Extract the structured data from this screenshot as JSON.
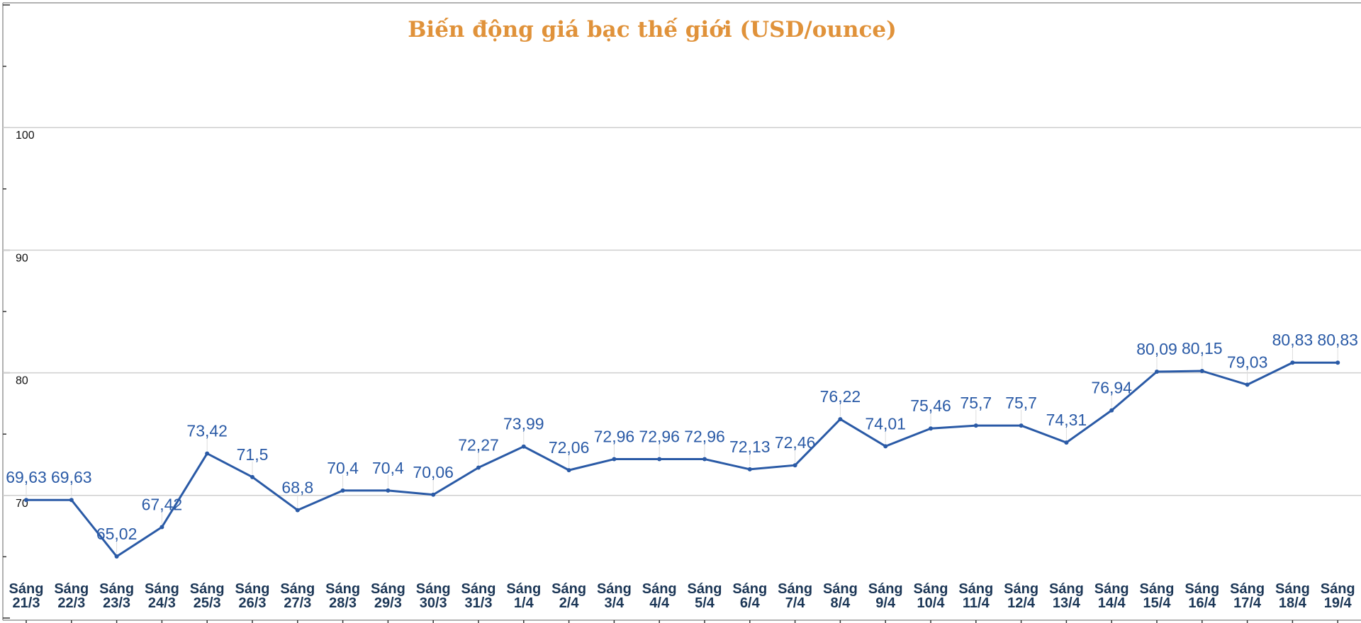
{
  "chart_data": {
    "type": "line",
    "title": "Biến động giá bạc thế giới (USD/ounce)",
    "xlabel": "",
    "ylabel": "",
    "ylim": [
      60,
      110
    ],
    "yticks": [
      "70",
      "80",
      "90",
      "100"
    ],
    "grid": true,
    "line_color": "#2a5aa6",
    "title_color": "#e0923a",
    "categories": [
      [
        "Sáng",
        "21/3"
      ],
      [
        "Sáng",
        "22/3"
      ],
      [
        "Sáng",
        "23/3"
      ],
      [
        "Sáng",
        "24/3"
      ],
      [
        "Sáng",
        "25/3"
      ],
      [
        "Sáng",
        "26/3"
      ],
      [
        "Sáng",
        "27/3"
      ],
      [
        "Sáng",
        "28/3"
      ],
      [
        "Sáng",
        "29/3"
      ],
      [
        "Sáng",
        "30/3"
      ],
      [
        "Sáng",
        "31/3"
      ],
      [
        "Sáng",
        "1/4"
      ],
      [
        "Sáng",
        "2/4"
      ],
      [
        "Sáng",
        "3/4"
      ],
      [
        "Sáng",
        "4/4"
      ],
      [
        "Sáng",
        "5/4"
      ],
      [
        "Sáng",
        "6/4"
      ],
      [
        "Sáng",
        "7/4"
      ],
      [
        "Sáng",
        "8/4"
      ],
      [
        "Sáng",
        "9/4"
      ],
      [
        "Sáng",
        "10/4"
      ],
      [
        "Sáng",
        "11/4"
      ],
      [
        "Sáng",
        "12/4"
      ],
      [
        "Sáng",
        "13/4"
      ],
      [
        "Sáng",
        "14/4"
      ],
      [
        "Sáng",
        "15/4"
      ],
      [
        "Sáng",
        "16/4"
      ],
      [
        "Sáng",
        "17/4"
      ],
      [
        "Sáng",
        "18/4"
      ],
      [
        "Sáng",
        "19/4"
      ]
    ],
    "values": [
      69.63,
      69.63,
      65.02,
      67.42,
      73.42,
      71.5,
      68.8,
      70.4,
      70.4,
      70.06,
      72.27,
      73.99,
      72.06,
      72.96,
      72.96,
      72.96,
      72.13,
      72.46,
      76.22,
      74.01,
      75.46,
      75.7,
      75.7,
      74.31,
      76.94,
      80.09,
      80.15,
      79.03,
      80.83,
      80.83
    ],
    "data_labels": [
      "69,63",
      "69,63",
      "65,02",
      "67,42",
      "73,42",
      "71,5",
      "68,8",
      "70,4",
      "70,4",
      "70,06",
      "72,27",
      "73,99",
      "72,06",
      "72,96",
      "72,96",
      "72,96",
      "72,13",
      "72,46",
      "76,22",
      "74,01",
      "75,46",
      "75,7",
      "75,7",
      "74,31",
      "76,94",
      "80,09",
      "80,15",
      "79,03",
      "80,83",
      "80,83"
    ]
  }
}
